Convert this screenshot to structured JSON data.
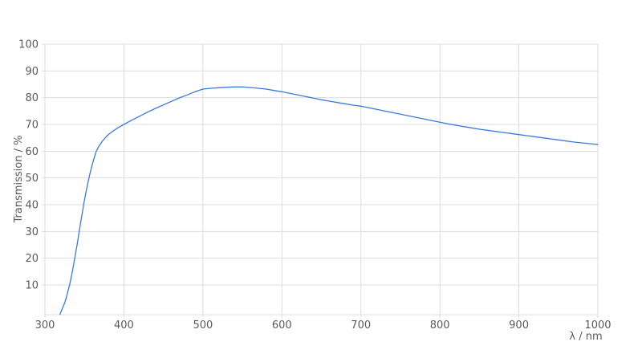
{
  "chart_data": {
    "type": "line",
    "title": "",
    "xlabel": "λ / nm",
    "ylabel": "Transmission / %",
    "xlim": [
      300,
      1000
    ],
    "ylim": [
      -1.1,
      100
    ],
    "x_ticks": [
      300,
      400,
      500,
      600,
      700,
      800,
      900,
      1000
    ],
    "y_ticks": [
      10,
      20,
      30,
      40,
      50,
      60,
      70,
      80,
      90,
      100
    ],
    "grid": true,
    "legend": "none",
    "line_color": "#3d78dd",
    "grid_color": "#dcdcdc",
    "axis_text_color": "#5a5a5a",
    "series": [
      {
        "name": "Transmission",
        "points": [
          [
            319,
            -1.0
          ],
          [
            321,
            0.5
          ],
          [
            323,
            1.8
          ],
          [
            325,
            3.3
          ],
          [
            327,
            5.2
          ],
          [
            329,
            7.5
          ],
          [
            331,
            9.8
          ],
          [
            333,
            12.5
          ],
          [
            335,
            15.5
          ],
          [
            337,
            18.8
          ],
          [
            339,
            22.2
          ],
          [
            341,
            25.6
          ],
          [
            343,
            29.3
          ],
          [
            345,
            33.0
          ],
          [
            347,
            36.5
          ],
          [
            349,
            40.0
          ],
          [
            351,
            43.2
          ],
          [
            353,
            46.2
          ],
          [
            355,
            49.0
          ],
          [
            357,
            51.6
          ],
          [
            359,
            54.0
          ],
          [
            361,
            56.1
          ],
          [
            363,
            58.1
          ],
          [
            365,
            60.0
          ],
          [
            368,
            61.7
          ],
          [
            371,
            63.0
          ],
          [
            374,
            64.2
          ],
          [
            377,
            65.2
          ],
          [
            380,
            66.1
          ],
          [
            385,
            67.3
          ],
          [
            390,
            68.3
          ],
          [
            395,
            69.2
          ],
          [
            400,
            70.0
          ],
          [
            410,
            71.6
          ],
          [
            420,
            73.1
          ],
          [
            430,
            74.6
          ],
          [
            440,
            76.0
          ],
          [
            450,
            77.3
          ],
          [
            460,
            78.6
          ],
          [
            470,
            79.9
          ],
          [
            480,
            81.0
          ],
          [
            490,
            82.2
          ],
          [
            500,
            83.2
          ],
          [
            510,
            83.5
          ],
          [
            520,
            83.7
          ],
          [
            530,
            83.9
          ],
          [
            540,
            84.0
          ],
          [
            550,
            84.0
          ],
          [
            560,
            83.8
          ],
          [
            570,
            83.5
          ],
          [
            580,
            83.2
          ],
          [
            590,
            82.7
          ],
          [
            600,
            82.2
          ],
          [
            610,
            81.6
          ],
          [
            620,
            81.0
          ],
          [
            630,
            80.4
          ],
          [
            640,
            79.8
          ],
          [
            650,
            79.2
          ],
          [
            660,
            78.7
          ],
          [
            670,
            78.2
          ],
          [
            680,
            77.7
          ],
          [
            690,
            77.2
          ],
          [
            700,
            76.8
          ],
          [
            710,
            76.2
          ],
          [
            720,
            75.6
          ],
          [
            730,
            75.0
          ],
          [
            740,
            74.4
          ],
          [
            750,
            73.8
          ],
          [
            760,
            73.2
          ],
          [
            770,
            72.6
          ],
          [
            780,
            72.0
          ],
          [
            790,
            71.4
          ],
          [
            800,
            70.8
          ],
          [
            810,
            70.2
          ],
          [
            820,
            69.7
          ],
          [
            830,
            69.2
          ],
          [
            840,
            68.7
          ],
          [
            850,
            68.2
          ],
          [
            860,
            67.8
          ],
          [
            870,
            67.4
          ],
          [
            880,
            67.0
          ],
          [
            890,
            66.6
          ],
          [
            900,
            66.2
          ],
          [
            910,
            65.8
          ],
          [
            920,
            65.4
          ],
          [
            930,
            65.0
          ],
          [
            940,
            64.6
          ],
          [
            950,
            64.2
          ],
          [
            960,
            63.8
          ],
          [
            970,
            63.4
          ],
          [
            980,
            63.1
          ],
          [
            990,
            62.8
          ],
          [
            1000,
            62.5
          ]
        ]
      }
    ]
  }
}
